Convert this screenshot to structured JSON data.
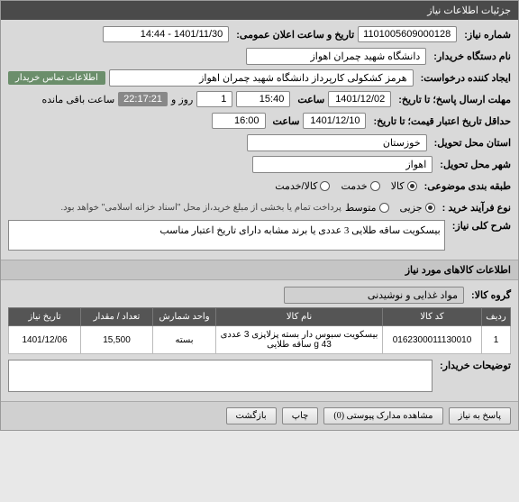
{
  "header": {
    "title": "جزئیات اطلاعات نیاز"
  },
  "fields": {
    "need_number_label": "شماره نیاز:",
    "need_number": "1101005609000128",
    "announce_label": "تاریخ و ساعت اعلان عمومی:",
    "announce_value": "1401/11/30 - 14:44",
    "buyer_org_label": "نام دستگاه خریدار:",
    "buyer_org": "دانشگاه شهید چمران اهواز",
    "requester_label": "ایجاد کننده درخواست:",
    "requester": "هرمز کشکولی کارپرداز دانشگاه شهید چمران اهواز",
    "contact_badge": "اطلاعات تماس خریدار",
    "deadline_label": "مهلت ارسال پاسخ؛ تا تاریخ:",
    "deadline_date": "1401/12/02",
    "time_label": "ساعت",
    "deadline_time": "15:40",
    "days_label": "روز و",
    "days": "1",
    "countdown": "22:17:21",
    "remaining": "ساعت باقی مانده",
    "validity_label": "حداقل تاریخ اعتبار قیمت؛ تا تاریخ:",
    "validity_date": "1401/12/10",
    "validity_time": "16:00",
    "province_label": "استان محل تحویل:",
    "province": "خوزستان",
    "city_label": "شهر محل تحویل:",
    "city": "اهواز",
    "category_label": "طبقه بندی موضوعی:",
    "cat_goods": "کالا",
    "cat_service": "خدمت",
    "cat_both": "کالا/خدمت",
    "process_label": "نوع فرآیند خرید :",
    "proc_partial": "جزیی",
    "proc_medium": "متوسط",
    "payment_note": "پرداخت تمام یا بخشی از مبلغ خرید،از محل \"اسناد خزانه اسلامی\" خواهد بود.",
    "desc_label": "شرح کلی نیاز:",
    "desc_text": "بیسکویت ساقه طلایی 3 عددی یا برند مشابه دارای تاریخ اعتبار مناسب"
  },
  "items_section": {
    "title": "اطلاعات کالاهای مورد نیاز",
    "group_label": "گروه کالا:",
    "group_value": "مواد غذایی و نوشیدنی"
  },
  "table": {
    "columns": [
      "ردیف",
      "کد کالا",
      "نام کالا",
      "واحد شمارش",
      "تعداد / مقدار",
      "تاریخ نیاز"
    ],
    "rows": [
      [
        "1",
        "0162300011130010",
        "بیسکویت سبوس دار بسته پزلاپزی 3 عددی 43 g ساقه طلایی",
        "بسته",
        "15,500",
        "1401/12/06"
      ]
    ],
    "col_widths": [
      "32px",
      "110px",
      "auto",
      "70px",
      "80px",
      "80px"
    ]
  },
  "buyer_notes_label": "توضیحات خریدار:",
  "footer": {
    "back": "پاسخ به نیاز",
    "attachments": "مشاهده مدارک پیوستی (0)",
    "print": "چاپ",
    "return": "بازگشت"
  },
  "colors": {
    "header_bg": "#4a4a4a",
    "badge_bg": "#6b8e6b",
    "th_bg": "#555555"
  }
}
